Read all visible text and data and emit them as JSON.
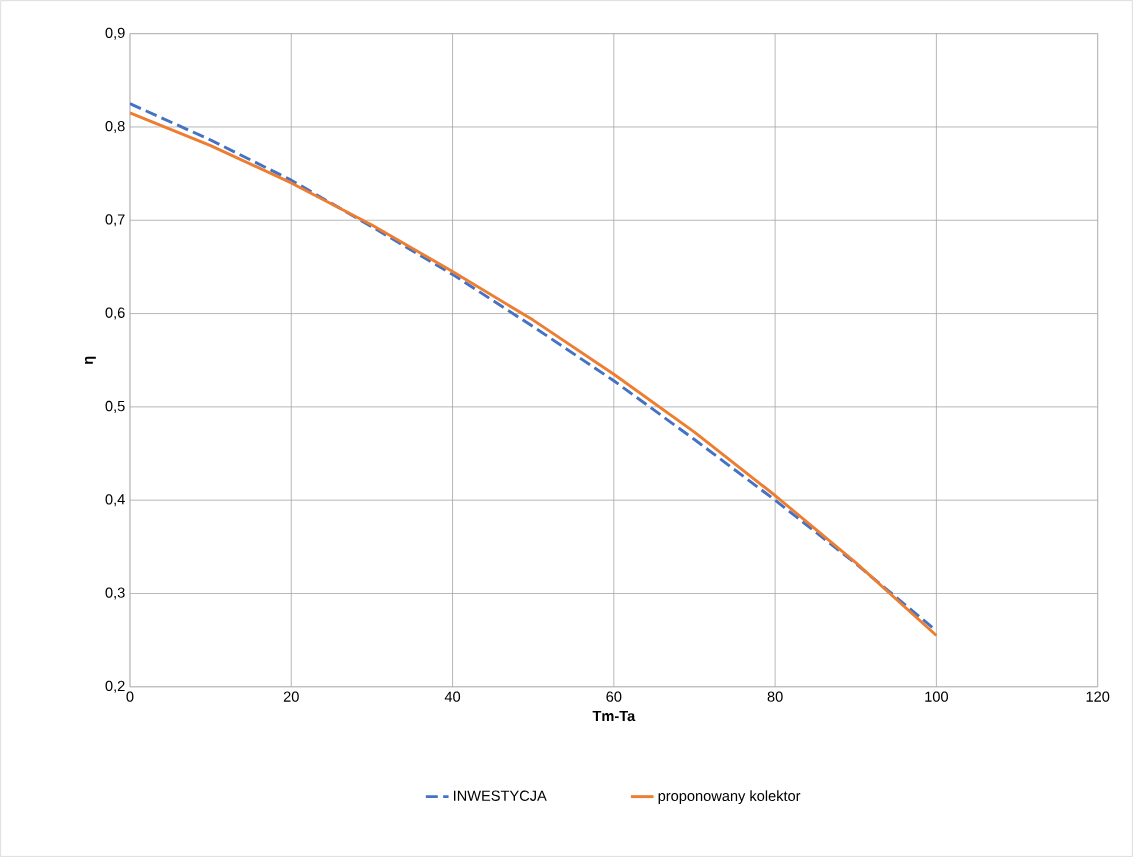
{
  "chart_data": {
    "type": "line",
    "xlabel": "Tm-Ta",
    "ylabel": "η",
    "x": [
      0,
      10,
      20,
      30,
      40,
      50,
      60,
      70,
      80,
      90,
      100
    ],
    "series": [
      {
        "name": "INWESTYCJA",
        "color": "#4472c4",
        "line_style": "dashed",
        "values": [
          0.825,
          0.786,
          0.743,
          0.693,
          0.642,
          0.586,
          0.528,
          0.465,
          0.4,
          0.332,
          0.26
        ]
      },
      {
        "name": "proponowany kolektor",
        "color": "#ed7d31",
        "line_style": "solid",
        "values": [
          0.815,
          0.78,
          0.74,
          0.695,
          0.645,
          0.593,
          0.535,
          0.473,
          0.405,
          0.333,
          0.255
        ]
      }
    ],
    "xlim": [
      0,
      120
    ],
    "xticks": [
      0,
      20,
      40,
      60,
      80,
      100,
      120
    ],
    "ylim": [
      0.2,
      0.9
    ],
    "yticks": [
      {
        "value": 0.2,
        "label": "0,2"
      },
      {
        "value": 0.3,
        "label": "0,3"
      },
      {
        "value": 0.4,
        "label": "0,4"
      },
      {
        "value": 0.5,
        "label": "0,5"
      },
      {
        "value": 0.6,
        "label": "0,6"
      },
      {
        "value": 0.7,
        "label": "0,7"
      },
      {
        "value": 0.8,
        "label": "0,8"
      },
      {
        "value": 0.9,
        "label": "0,9"
      }
    ],
    "grid": true,
    "legend": "bottom",
    "marker": "none"
  }
}
